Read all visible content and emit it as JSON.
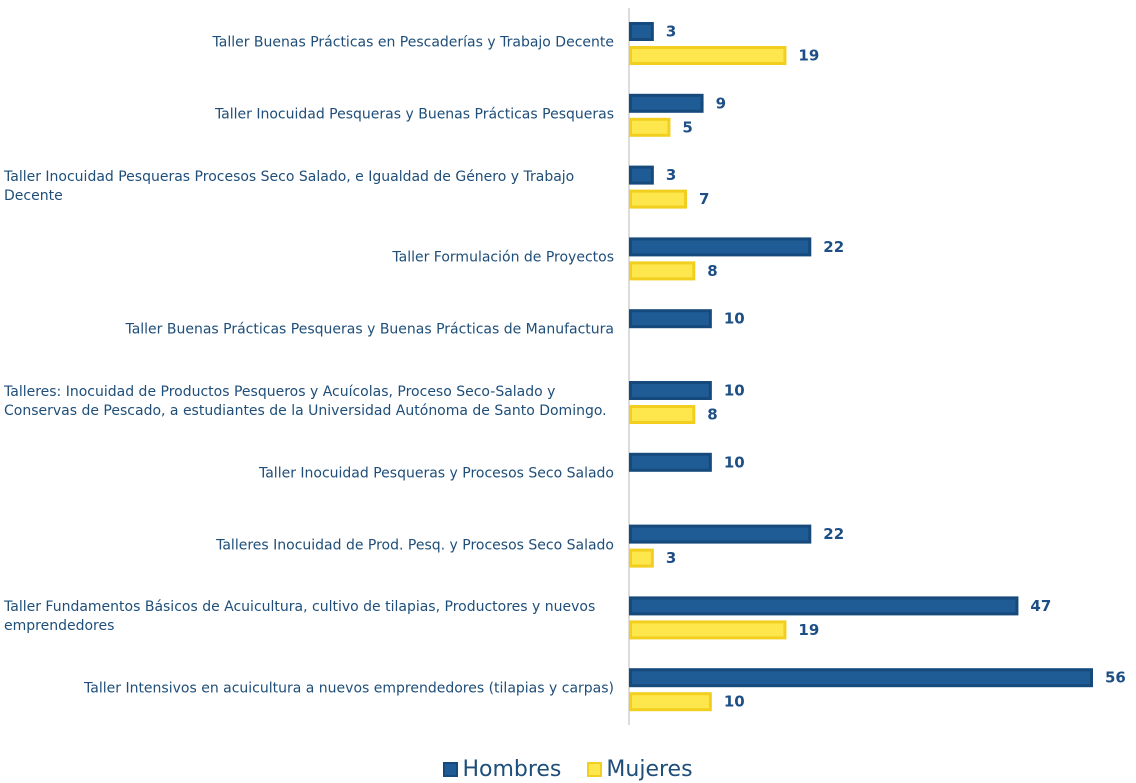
{
  "chart_data": {
    "type": "bar",
    "orientation": "horizontal",
    "categories": [
      "Taller Buenas Prácticas en Pescaderías y Trabajo Decente",
      "Taller Inocuidad Pesqueras y Buenas Prácticas Pesqueras",
      "Taller Inocuidad Pesqueras  Procesos Seco Salado, e Igualdad de Género y Trabajo Decente",
      "Taller Formulación de Proyectos",
      "Taller Buenas Prácticas Pesqueras y Buenas Prácticas de Manufactura",
      "Talleres: Inocuidad de Productos Pesqueros y Acuícolas, Proceso Seco-Salado y Conservas de Pescado, a estudiantes de la Universidad Autónoma de Santo Domingo.",
      "Taller Inocuidad Pesqueras y Procesos Seco Salado",
      "Talleres Inocuidad de Prod. Pesq. y Procesos Seco Salado",
      "Taller Fundamentos Básicos de Acuicultura, cultivo de tilapias, Productores  y nuevos emprendedores",
      "Taller Intensivos en acuicultura a nuevos emprendedores (tilapias y carpas)"
    ],
    "series": [
      {
        "name": "Hombres",
        "color": "#1f5b94",
        "values": [
          3,
          9,
          3,
          22,
          10,
          10,
          10,
          22,
          47,
          56
        ]
      },
      {
        "name": "Mujeres",
        "color": "#fde74c",
        "values": [
          19,
          5,
          7,
          8,
          null,
          8,
          null,
          3,
          19,
          10
        ]
      }
    ],
    "legend": "bottom"
  }
}
